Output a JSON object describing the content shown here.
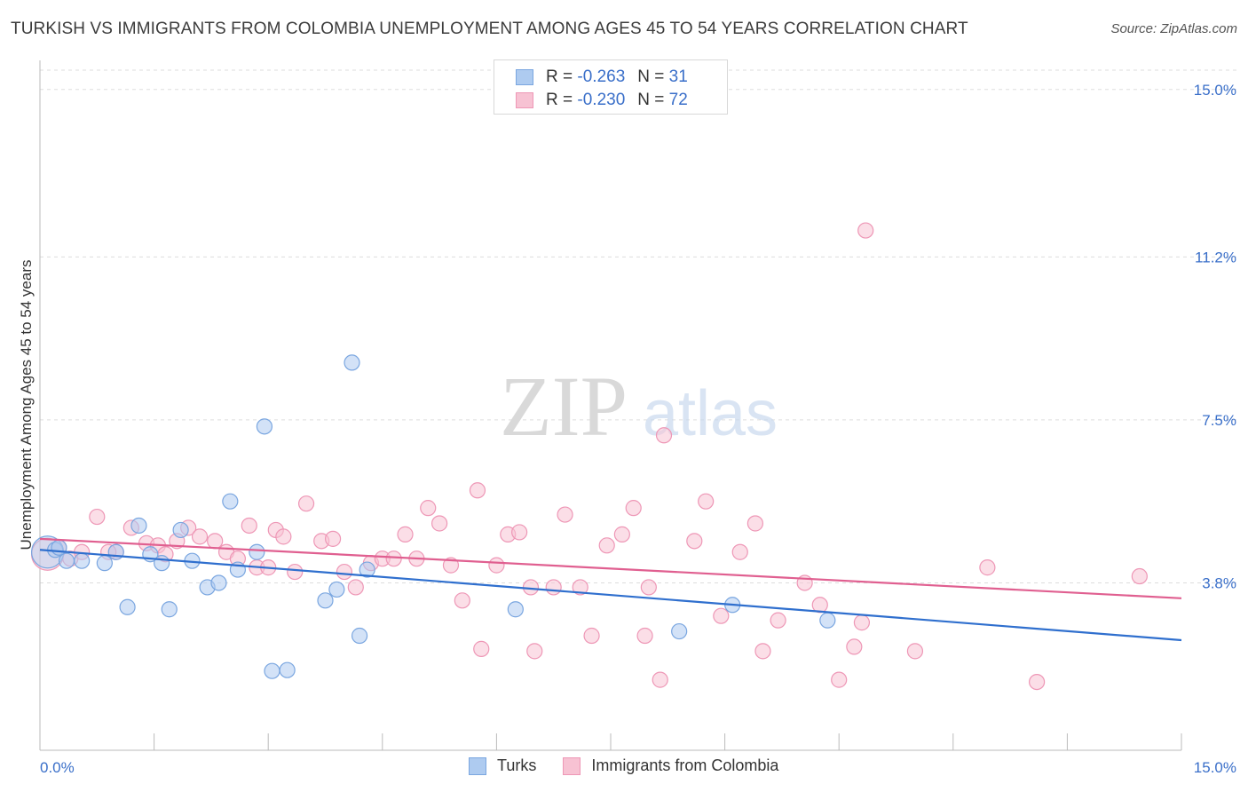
{
  "title": "TURKISH VS IMMIGRANTS FROM COLOMBIA UNEMPLOYMENT AMONG AGES 45 TO 54 YEARS CORRELATION CHART",
  "source": "Source: ZipAtlas.com",
  "watermark": {
    "zip": "ZIP",
    "atlas": "atlas"
  },
  "legend_top": {
    "rows": [
      {
        "r_label": "R =",
        "r_value": "-0.263",
        "n_label": "N =",
        "n_value": "31"
      },
      {
        "r_label": "R =",
        "r_value": "-0.230",
        "n_label": "N =",
        "n_value": "72"
      }
    ]
  },
  "legend_bottom": [
    {
      "label": "Turks"
    },
    {
      "label": "Immigrants from Colombia"
    }
  ],
  "colors": {
    "turks_fill": "#aecbf0",
    "turks_stroke": "#7aa6e0",
    "turks_line": "#2f6fce",
    "colombia_fill": "#f7c2d3",
    "colombia_stroke": "#ee97b6",
    "colombia_line": "#e05f90",
    "tick_label": "#3a6fc9",
    "grid": "#dddddd"
  },
  "chart_data": {
    "type": "scatter",
    "title": "TURKISH VS IMMIGRANTS FROM COLOMBIA UNEMPLOYMENT AMONG AGES 45 TO 54 YEARS CORRELATION CHART",
    "xlabel": "",
    "ylabel": "Unemployment Among Ages 45 to 54 years",
    "xlim": [
      0,
      15
    ],
    "ylim": [
      0,
      15.5
    ],
    "x_tick_labels": [
      "0.0%",
      "15.0%"
    ],
    "y_ticks": [
      3.8,
      7.5,
      11.2,
      15.0
    ],
    "y_tick_labels": [
      "3.8%",
      "7.5%",
      "11.2%",
      "15.0%"
    ],
    "series": [
      {
        "name": "Turks",
        "r": -0.263,
        "n": 31,
        "trend": {
          "x0": 0,
          "y0": 4.55,
          "x1": 15,
          "y1": 2.5
        },
        "points": [
          {
            "x": 0.1,
            "y": 4.5,
            "big": true
          },
          {
            "x": 0.2,
            "y": 4.55
          },
          {
            "x": 0.35,
            "y": 4.3
          },
          {
            "x": 0.55,
            "y": 4.3
          },
          {
            "x": 0.85,
            "y": 4.25
          },
          {
            "x": 1.0,
            "y": 4.5
          },
          {
            "x": 1.15,
            "y": 3.25
          },
          {
            "x": 1.3,
            "y": 5.1
          },
          {
            "x": 1.45,
            "y": 4.45
          },
          {
            "x": 1.6,
            "y": 4.25
          },
          {
            "x": 1.7,
            "y": 3.2
          },
          {
            "x": 1.85,
            "y": 5.0
          },
          {
            "x": 2.0,
            "y": 4.3
          },
          {
            "x": 2.2,
            "y": 3.7
          },
          {
            "x": 2.35,
            "y": 3.8
          },
          {
            "x": 2.5,
            "y": 5.65
          },
          {
            "x": 2.6,
            "y": 4.1
          },
          {
            "x": 2.85,
            "y": 4.5
          },
          {
            "x": 2.95,
            "y": 7.35
          },
          {
            "x": 3.05,
            "y": 1.8
          },
          {
            "x": 3.25,
            "y": 1.82
          },
          {
            "x": 3.75,
            "y": 3.4
          },
          {
            "x": 3.9,
            "y": 3.65
          },
          {
            "x": 4.1,
            "y": 8.8
          },
          {
            "x": 4.2,
            "y": 2.6
          },
          {
            "x": 4.3,
            "y": 4.1
          },
          {
            "x": 6.25,
            "y": 3.2
          },
          {
            "x": 8.4,
            "y": 2.7
          },
          {
            "x": 9.1,
            "y": 3.3
          },
          {
            "x": 10.35,
            "y": 2.95
          },
          {
            "x": 0.25,
            "y": 4.6
          }
        ]
      },
      {
        "name": "Immigrants from Colombia",
        "r": -0.23,
        "n": 72,
        "trend": {
          "x0": 0,
          "y0": 4.8,
          "x1": 15,
          "y1": 3.45
        },
        "points": [
          {
            "x": 0.1,
            "y": 4.45,
            "big": true
          },
          {
            "x": 0.25,
            "y": 4.6
          },
          {
            "x": 0.4,
            "y": 4.35
          },
          {
            "x": 0.55,
            "y": 4.5
          },
          {
            "x": 0.75,
            "y": 5.3
          },
          {
            "x": 1.0,
            "y": 4.5
          },
          {
            "x": 1.2,
            "y": 5.05
          },
          {
            "x": 1.4,
            "y": 4.7
          },
          {
            "x": 1.55,
            "y": 4.65
          },
          {
            "x": 1.65,
            "y": 4.45
          },
          {
            "x": 1.8,
            "y": 4.75
          },
          {
            "x": 1.95,
            "y": 5.05
          },
          {
            "x": 2.1,
            "y": 4.85
          },
          {
            "x": 2.3,
            "y": 4.75
          },
          {
            "x": 2.45,
            "y": 4.5
          },
          {
            "x": 2.6,
            "y": 4.35
          },
          {
            "x": 2.75,
            "y": 5.1
          },
          {
            "x": 2.85,
            "y": 4.15
          },
          {
            "x": 3.0,
            "y": 4.15
          },
          {
            "x": 3.1,
            "y": 5.0
          },
          {
            "x": 3.2,
            "y": 4.85
          },
          {
            "x": 3.35,
            "y": 4.05
          },
          {
            "x": 3.5,
            "y": 5.6
          },
          {
            "x": 3.7,
            "y": 4.75
          },
          {
            "x": 3.85,
            "y": 4.8
          },
          {
            "x": 4.0,
            "y": 4.05
          },
          {
            "x": 4.15,
            "y": 3.7
          },
          {
            "x": 4.35,
            "y": 4.25
          },
          {
            "x": 4.5,
            "y": 4.35
          },
          {
            "x": 4.65,
            "y": 4.35
          },
          {
            "x": 4.8,
            "y": 4.9
          },
          {
            "x": 4.95,
            "y": 4.35
          },
          {
            "x": 5.1,
            "y": 5.5
          },
          {
            "x": 5.25,
            "y": 5.15
          },
          {
            "x": 5.4,
            "y": 4.2
          },
          {
            "x": 5.55,
            "y": 3.4
          },
          {
            "x": 5.75,
            "y": 5.9
          },
          {
            "x": 5.8,
            "y": 2.3
          },
          {
            "x": 6.0,
            "y": 4.2
          },
          {
            "x": 6.15,
            "y": 4.9
          },
          {
            "x": 6.3,
            "y": 4.95
          },
          {
            "x": 6.45,
            "y": 3.7
          },
          {
            "x": 6.5,
            "y": 2.25
          },
          {
            "x": 6.75,
            "y": 3.7
          },
          {
            "x": 6.9,
            "y": 5.35
          },
          {
            "x": 7.1,
            "y": 3.7
          },
          {
            "x": 7.25,
            "y": 2.6
          },
          {
            "x": 7.45,
            "y": 4.65
          },
          {
            "x": 7.65,
            "y": 4.9
          },
          {
            "x": 7.8,
            "y": 5.5
          },
          {
            "x": 7.95,
            "y": 2.6
          },
          {
            "x": 8.0,
            "y": 3.7
          },
          {
            "x": 8.15,
            "y": 1.6
          },
          {
            "x": 8.2,
            "y": 7.15
          },
          {
            "x": 8.6,
            "y": 4.75
          },
          {
            "x": 8.75,
            "y": 5.65
          },
          {
            "x": 8.95,
            "y": 3.05
          },
          {
            "x": 9.2,
            "y": 4.5
          },
          {
            "x": 9.4,
            "y": 5.15
          },
          {
            "x": 9.5,
            "y": 2.25
          },
          {
            "x": 9.7,
            "y": 2.95
          },
          {
            "x": 10.05,
            "y": 3.8
          },
          {
            "x": 10.25,
            "y": 3.3
          },
          {
            "x": 10.5,
            "y": 1.6
          },
          {
            "x": 10.7,
            "y": 2.35
          },
          {
            "x": 10.8,
            "y": 2.9
          },
          {
            "x": 10.85,
            "y": 11.8
          },
          {
            "x": 11.5,
            "y": 2.25
          },
          {
            "x": 12.45,
            "y": 4.15
          },
          {
            "x": 13.1,
            "y": 1.55
          },
          {
            "x": 14.45,
            "y": 3.95
          },
          {
            "x": 0.9,
            "y": 4.5
          }
        ]
      }
    ]
  }
}
